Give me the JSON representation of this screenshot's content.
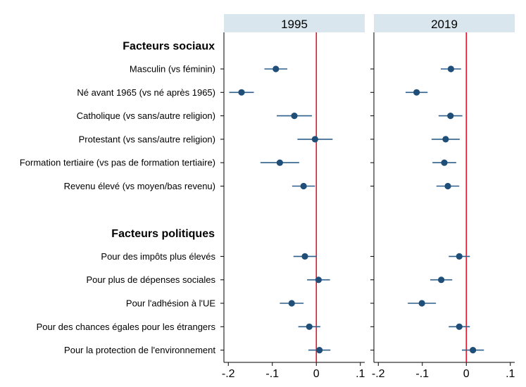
{
  "chart_data": {
    "type": "scatter",
    "subtype": "coefficient-plot",
    "panels": [
      "1995",
      "2019"
    ],
    "groups": [
      {
        "label": "Facteurs sociaux",
        "rows": [
          {
            "label": "Masculin (vs féminin)",
            "1995": {
              "est": -0.092,
              "lo": -0.118,
              "hi": -0.066
            },
            "2019": {
              "est": -0.035,
              "lo": -0.058,
              "hi": -0.012
            }
          },
          {
            "label": "Né avant 1965 (vs né après 1965)",
            "1995": {
              "est": -0.17,
              "lo": -0.198,
              "hi": -0.142
            },
            "2019": {
              "est": -0.113,
              "lo": -0.138,
              "hi": -0.088
            }
          },
          {
            "label": "Catholique (vs sans/autre religion)",
            "1995": {
              "est": -0.05,
              "lo": -0.09,
              "hi": -0.01
            },
            "2019": {
              "est": -0.036,
              "lo": -0.063,
              "hi": -0.009
            }
          },
          {
            "label": "Protestant (vs sans/autre religion)",
            "1995": {
              "est": -0.003,
              "lo": -0.043,
              "hi": 0.037
            },
            "2019": {
              "est": -0.047,
              "lo": -0.079,
              "hi": -0.015
            }
          },
          {
            "label": "Formation tertiaire (vs pas de formation tertiaire)",
            "1995": {
              "est": -0.083,
              "lo": -0.127,
              "hi": -0.039
            },
            "2019": {
              "est": -0.05,
              "lo": -0.077,
              "hi": -0.023
            }
          },
          {
            "label": "Revenu élevé (vs moyen/bas revenu)",
            "1995": {
              "est": -0.029,
              "lo": -0.055,
              "hi": -0.003
            },
            "2019": {
              "est": -0.042,
              "lo": -0.068,
              "hi": -0.016
            }
          }
        ]
      },
      {
        "label": "Facteurs politiques",
        "rows": [
          {
            "label": "Pour des impôts plus élevés",
            "1995": {
              "est": -0.026,
              "lo": -0.052,
              "hi": 0.0
            },
            "2019": {
              "est": -0.016,
              "lo": -0.04,
              "hi": 0.008
            }
          },
          {
            "label": "Pour plus de dépenses sociales",
            "1995": {
              "est": 0.005,
              "lo": -0.021,
              "hi": 0.031
            },
            "2019": {
              "est": -0.057,
              "lo": -0.082,
              "hi": -0.032
            }
          },
          {
            "label": "Pour l'adhésion à l'UE",
            "1995": {
              "est": -0.056,
              "lo": -0.083,
              "hi": -0.029
            },
            "2019": {
              "est": -0.101,
              "lo": -0.133,
              "hi": -0.069
            }
          },
          {
            "label": "Pour des chances égales pour les étrangers",
            "1995": {
              "est": -0.016,
              "lo": -0.041,
              "hi": 0.009
            },
            "2019": {
              "est": -0.016,
              "lo": -0.04,
              "hi": 0.008
            }
          },
          {
            "label": "Pour la protection de l'environnement",
            "1995": {
              "est": 0.007,
              "lo": -0.018,
              "hi": 0.032
            },
            "2019": {
              "est": 0.015,
              "lo": -0.01,
              "hi": 0.04
            }
          }
        ]
      }
    ],
    "xticks": [
      -0.2,
      -0.1,
      0,
      0.1
    ],
    "xtick_labels": [
      "-.2",
      "-.1",
      "0",
      ".1"
    ],
    "xlim": [
      -0.21,
      0.11
    ],
    "reference_line": 0,
    "grid": false,
    "colors": {
      "point": "#1f4e79",
      "ci": "#2e5f8a",
      "reference": "#e8132b",
      "strip": "#d9e6ee",
      "axis": "#000000"
    }
  }
}
